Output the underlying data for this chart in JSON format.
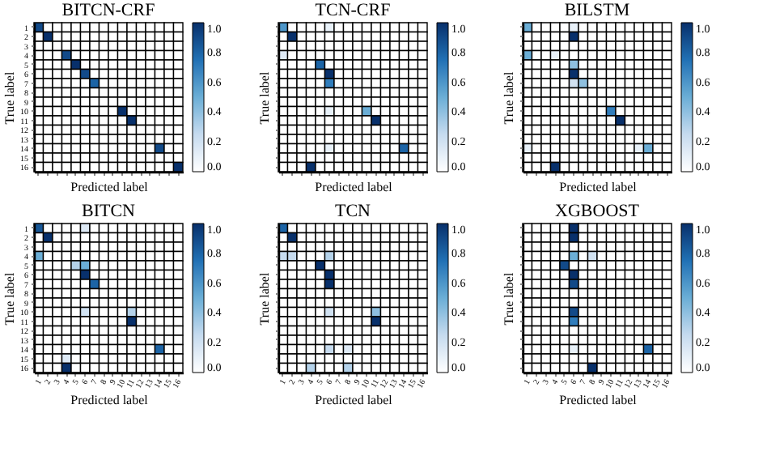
{
  "chart_data": [
    {
      "type": "heatmap",
      "title": "BITCN-CRF",
      "xlabel": "Predicted label",
      "ylabel": "True label",
      "tick_labels": "y",
      "categories": [
        "1",
        "2",
        "3",
        "4",
        "5",
        "6",
        "7",
        "8",
        "9",
        "10",
        "11",
        "12",
        "13",
        "14",
        "15",
        "16"
      ],
      "y_categories": [
        "1",
        "2",
        "3",
        "4",
        "5",
        "6",
        "7",
        "8",
        "9",
        "10",
        "11",
        "12",
        "13",
        "14",
        "15",
        "16"
      ],
      "clim": [
        0,
        1
      ],
      "cticks": [
        {
          "value": 0,
          "label": "0.0"
        },
        {
          "value": 0.2,
          "label": "0.2"
        },
        {
          "value": 0.4,
          "label": "0.4"
        },
        {
          "value": 0.6,
          "label": "0.6"
        },
        {
          "value": 0.8,
          "label": "0.8"
        },
        {
          "value": 1,
          "label": "1.0"
        }
      ],
      "cells": [
        [
          0.9,
          0,
          0,
          0,
          0,
          0,
          0,
          0,
          0,
          0,
          0,
          0,
          0,
          0,
          0,
          0
        ],
        [
          0,
          1,
          0,
          0,
          0,
          0,
          0,
          0,
          0,
          0,
          0,
          0,
          0,
          0,
          0,
          0
        ],
        [
          0,
          0,
          0,
          0,
          0,
          0,
          0,
          0,
          0,
          0,
          0,
          0,
          0,
          0,
          0,
          0
        ],
        [
          0,
          0,
          0,
          0.9,
          0,
          0,
          0,
          0,
          0,
          0,
          0,
          0,
          0,
          0,
          0,
          0
        ],
        [
          0,
          0,
          0,
          0,
          1,
          0,
          0,
          0,
          0,
          0,
          0,
          0,
          0,
          0,
          0,
          0
        ],
        [
          0,
          0,
          0,
          0,
          0,
          0.9,
          0,
          0,
          0,
          0,
          0,
          0,
          0,
          0,
          0,
          0
        ],
        [
          0,
          0,
          0,
          0,
          0,
          0,
          0.8,
          0,
          0,
          0,
          0,
          0,
          0,
          0,
          0,
          0
        ],
        [
          0,
          0,
          0,
          0,
          0,
          0,
          0,
          0,
          0,
          0,
          0,
          0,
          0,
          0,
          0,
          0
        ],
        [
          0,
          0,
          0,
          0,
          0,
          0,
          0,
          0,
          0,
          0,
          0,
          0,
          0,
          0,
          0,
          0
        ],
        [
          0,
          0,
          0,
          0,
          0,
          0,
          0,
          0,
          0,
          1,
          0,
          0,
          0,
          0,
          0,
          0
        ],
        [
          0,
          0,
          0,
          0,
          0,
          0,
          0,
          0,
          0,
          0,
          1,
          0,
          0,
          0,
          0,
          0
        ],
        [
          0,
          0,
          0,
          0,
          0,
          0,
          0,
          0,
          0,
          0,
          0,
          0,
          0,
          0,
          0,
          0
        ],
        [
          0,
          0,
          0,
          0,
          0,
          0,
          0,
          0,
          0,
          0,
          0,
          0,
          0,
          0,
          0,
          0
        ],
        [
          0,
          0,
          0,
          0,
          0,
          0,
          0,
          0,
          0,
          0,
          0,
          0,
          0,
          0.9,
          0,
          0
        ],
        [
          0,
          0,
          0,
          0,
          0,
          0,
          0,
          0,
          0,
          0,
          0,
          0,
          0,
          0,
          0,
          0
        ],
        [
          0,
          0,
          0,
          0,
          0,
          0,
          0,
          0,
          0,
          0,
          0,
          0,
          0,
          0,
          0,
          1
        ]
      ]
    },
    {
      "type": "heatmap",
      "title": "TCN-CRF",
      "xlabel": "Predicted label",
      "ylabel": "True label",
      "tick_labels": false,
      "categories": [
        "1",
        "2",
        "3",
        "4",
        "5",
        "6",
        "7",
        "8",
        "9",
        "10",
        "11",
        "12",
        "13",
        "14",
        "15",
        "16"
      ],
      "y_categories": [
        "1",
        "2",
        "3",
        "4",
        "5",
        "6",
        "7",
        "8",
        "9",
        "10",
        "11",
        "12",
        "13",
        "14",
        "15",
        "16"
      ],
      "clim": [
        0,
        1
      ],
      "cticks": [
        {
          "value": 0,
          "label": "0.0"
        },
        {
          "value": 0.2,
          "label": "0.2"
        },
        {
          "value": 0.4,
          "label": "0.4"
        },
        {
          "value": 0.6,
          "label": "0.6"
        },
        {
          "value": 0.8,
          "label": "0.8"
        },
        {
          "value": 1,
          "label": "1.0"
        }
      ],
      "cells": [
        [
          0.6,
          0,
          0,
          0,
          0,
          0.1,
          0,
          0,
          0,
          0,
          0,
          0,
          0,
          0,
          0,
          0
        ],
        [
          0,
          1,
          0,
          0,
          0,
          0,
          0,
          0,
          0,
          0,
          0,
          0,
          0,
          0,
          0,
          0
        ],
        [
          0,
          0,
          0,
          0,
          0,
          0,
          0,
          0,
          0,
          0,
          0,
          0,
          0,
          0,
          0,
          0
        ],
        [
          0.15,
          0,
          0,
          0,
          0,
          0,
          0,
          0,
          0,
          0,
          0,
          0,
          0,
          0,
          0,
          0
        ],
        [
          0,
          0,
          0,
          0,
          0.8,
          0,
          0,
          0,
          0,
          0,
          0,
          0,
          0,
          0,
          0,
          0
        ],
        [
          0,
          0,
          0,
          0,
          0,
          1,
          0,
          0,
          0,
          0,
          0,
          0,
          0,
          0,
          0,
          0
        ],
        [
          0,
          0,
          0,
          0,
          0,
          0.7,
          0,
          0,
          0,
          0,
          0,
          0,
          0,
          0,
          0,
          0
        ],
        [
          0,
          0,
          0,
          0,
          0,
          0,
          0,
          0,
          0,
          0,
          0,
          0,
          0,
          0,
          0,
          0
        ],
        [
          0,
          0,
          0,
          0,
          0,
          0,
          0,
          0,
          0,
          0,
          0,
          0,
          0,
          0,
          0,
          0
        ],
        [
          0,
          0,
          0,
          0,
          0,
          0.1,
          0,
          0,
          0,
          0.5,
          0,
          0,
          0,
          0,
          0,
          0
        ],
        [
          0,
          0,
          0,
          0,
          0,
          0,
          0,
          0,
          0,
          0,
          1,
          0,
          0,
          0,
          0,
          0
        ],
        [
          0,
          0,
          0,
          0,
          0,
          0,
          0,
          0,
          0,
          0,
          0,
          0,
          0,
          0,
          0,
          0
        ],
        [
          0,
          0,
          0,
          0,
          0,
          0,
          0,
          0,
          0,
          0,
          0,
          0,
          0,
          0,
          0,
          0
        ],
        [
          0,
          0,
          0,
          0,
          0,
          0.1,
          0,
          0,
          0,
          0,
          0,
          0,
          0,
          0.8,
          0,
          0
        ],
        [
          0,
          0,
          0,
          0,
          0,
          0,
          0,
          0,
          0,
          0,
          0,
          0,
          0,
          0,
          0,
          0
        ],
        [
          0,
          0,
          0,
          1,
          0,
          0,
          0,
          0,
          0,
          0,
          0,
          0,
          0,
          0,
          0,
          0
        ]
      ]
    },
    {
      "type": "heatmap",
      "title": "BILSTM",
      "xlabel": "Predicted label",
      "ylabel": "True label",
      "tick_labels": false,
      "categories": [
        "1",
        "2",
        "3",
        "4",
        "5",
        "6",
        "7",
        "8",
        "9",
        "10",
        "11",
        "12",
        "13",
        "14",
        "15",
        "16"
      ],
      "y_categories": [
        "1",
        "2",
        "3",
        "4",
        "5",
        "6",
        "7",
        "8",
        "9",
        "10",
        "11",
        "12",
        "13",
        "14",
        "15",
        "16"
      ],
      "clim": [
        0,
        1
      ],
      "cticks": [
        {
          "value": 0,
          "label": "0.0"
        },
        {
          "value": 0.2,
          "label": "0.2"
        },
        {
          "value": 0.4,
          "label": "0.4"
        },
        {
          "value": 0.6,
          "label": "0.6"
        },
        {
          "value": 0.8,
          "label": "0.8"
        },
        {
          "value": 1,
          "label": "1.0"
        }
      ],
      "cells": [
        [
          0.5,
          0,
          0,
          0,
          0,
          0.1,
          0,
          0,
          0,
          0,
          0,
          0,
          0,
          0,
          0,
          0
        ],
        [
          0,
          0,
          0,
          0,
          0,
          1,
          0,
          0,
          0,
          0,
          0,
          0,
          0,
          0,
          0,
          0
        ],
        [
          0,
          0,
          0,
          0,
          0,
          0,
          0,
          0,
          0,
          0,
          0,
          0,
          0,
          0,
          0,
          0
        ],
        [
          0.5,
          0,
          0,
          0.1,
          0,
          0,
          0,
          0,
          0,
          0,
          0,
          0,
          0,
          0,
          0,
          0
        ],
        [
          0,
          0,
          0,
          0,
          0,
          0.4,
          0,
          0,
          0,
          0,
          0,
          0,
          0,
          0,
          0,
          0
        ],
        [
          0,
          0,
          0,
          0,
          0,
          1,
          0,
          0,
          0,
          0,
          0,
          0,
          0,
          0,
          0,
          0
        ],
        [
          0,
          0,
          0,
          0,
          0,
          0.2,
          0.4,
          0,
          0,
          0,
          0,
          0,
          0,
          0,
          0,
          0
        ],
        [
          0,
          0,
          0,
          0,
          0,
          0,
          0,
          0,
          0,
          0,
          0,
          0,
          0,
          0,
          0,
          0
        ],
        [
          0,
          0,
          0,
          0,
          0,
          0,
          0,
          0,
          0,
          0,
          0,
          0,
          0,
          0,
          0,
          0
        ],
        [
          0,
          0,
          0,
          0,
          0,
          0,
          0,
          0,
          0,
          0.7,
          0,
          0,
          0,
          0,
          0,
          0
        ],
        [
          0,
          0,
          0,
          0,
          0,
          0,
          0,
          0,
          0,
          0,
          1,
          0,
          0,
          0,
          0,
          0
        ],
        [
          0,
          0,
          0,
          0,
          0,
          0,
          0,
          0,
          0,
          0,
          0,
          0,
          0,
          0,
          0,
          0
        ],
        [
          0,
          0,
          0,
          0,
          0,
          0,
          0,
          0,
          0,
          0,
          0,
          0,
          0,
          0,
          0,
          0
        ],
        [
          0.1,
          0,
          0,
          0,
          0,
          0,
          0,
          0,
          0,
          0,
          0,
          0,
          0.1,
          0.5,
          0,
          0
        ],
        [
          0,
          0,
          0,
          0,
          0,
          0,
          0,
          0,
          0,
          0,
          0,
          0,
          0,
          0,
          0,
          0
        ],
        [
          0,
          0,
          0,
          1,
          0,
          0,
          0,
          0,
          0,
          0,
          0,
          0,
          0,
          0,
          0,
          0
        ]
      ]
    },
    {
      "type": "heatmap",
      "title": "BITCN",
      "xlabel": "Predicted label",
      "ylabel": "True label",
      "categories": [
        "1",
        "2",
        "3",
        "4",
        "5",
        "6",
        "7",
        "8",
        "9",
        "10",
        "11",
        "12",
        "13",
        "14",
        "15",
        "16"
      ],
      "y_categories": [
        "1",
        "2",
        "3",
        "4",
        "5",
        "6",
        "7",
        "8",
        "9",
        "10",
        "11",
        "12",
        "13",
        "14",
        "15",
        "16"
      ],
      "clim": [
        0,
        1
      ],
      "cticks": [
        {
          "value": 0,
          "label": "0.0"
        },
        {
          "value": 0.2,
          "label": "0.2"
        },
        {
          "value": 0.4,
          "label": "0.4"
        },
        {
          "value": 0.6,
          "label": "0.6"
        },
        {
          "value": 0.8,
          "label": "0.8"
        },
        {
          "value": 1,
          "label": "1.0"
        }
      ],
      "cells": [
        [
          0.85,
          0,
          0,
          0,
          0,
          0.15,
          0,
          0,
          0,
          0,
          0,
          0,
          0,
          0,
          0,
          0
        ],
        [
          0,
          1,
          0,
          0,
          0,
          0,
          0,
          0,
          0,
          0,
          0,
          0,
          0,
          0,
          0,
          0
        ],
        [
          0,
          0,
          0,
          0,
          0,
          0,
          0,
          0,
          0,
          0,
          0,
          0,
          0,
          0,
          0,
          0
        ],
        [
          0.5,
          0,
          0,
          0,
          0,
          0,
          0,
          0,
          0,
          0,
          0,
          0,
          0,
          0,
          0,
          0
        ],
        [
          0,
          0,
          0,
          0,
          0.3,
          0.5,
          0,
          0,
          0,
          0,
          0,
          0,
          0,
          0,
          0,
          0
        ],
        [
          0,
          0,
          0,
          0,
          0,
          1,
          0,
          0,
          0,
          0,
          0,
          0,
          0,
          0,
          0,
          0
        ],
        [
          0,
          0,
          0,
          0,
          0,
          0,
          0.8,
          0,
          0,
          0,
          0,
          0,
          0,
          0,
          0,
          0
        ],
        [
          0,
          0,
          0,
          0,
          0,
          0,
          0,
          0,
          0,
          0,
          0,
          0,
          0,
          0,
          0,
          0
        ],
        [
          0,
          0,
          0,
          0,
          0,
          0,
          0,
          0,
          0,
          0,
          0,
          0,
          0,
          0,
          0,
          0
        ],
        [
          0,
          0,
          0,
          0,
          0,
          0.2,
          0,
          0,
          0,
          0,
          0.3,
          0,
          0,
          0,
          0,
          0
        ],
        [
          0,
          0,
          0,
          0,
          0,
          0,
          0,
          0,
          0,
          0,
          1,
          0,
          0,
          0,
          0,
          0
        ],
        [
          0,
          0,
          0,
          0,
          0,
          0,
          0,
          0,
          0,
          0,
          0,
          0,
          0,
          0,
          0,
          0
        ],
        [
          0,
          0,
          0,
          0,
          0,
          0,
          0,
          0,
          0,
          0,
          0,
          0,
          0,
          0,
          0,
          0
        ],
        [
          0,
          0,
          0,
          0,
          0,
          0,
          0,
          0,
          0,
          0,
          0,
          0,
          0,
          0.8,
          0,
          0
        ],
        [
          0,
          0,
          0,
          0.15,
          0,
          0,
          0,
          0,
          0,
          0,
          0,
          0,
          0,
          0,
          0,
          0
        ],
        [
          0,
          0,
          0,
          1,
          0,
          0,
          0,
          0,
          0,
          0,
          0,
          0,
          0,
          0,
          0,
          0
        ]
      ]
    },
    {
      "type": "heatmap",
      "title": "TCN",
      "xlabel": "Predicted label",
      "ylabel": "True label",
      "tick_labels": "x",
      "categories": [
        "1",
        "2",
        "3",
        "4",
        "5",
        "6",
        "7",
        "8",
        "9",
        "10",
        "11",
        "12",
        "13",
        "14",
        "15",
        "16"
      ],
      "y_categories": [
        "1",
        "2",
        "3",
        "4",
        "5",
        "6",
        "7",
        "8",
        "9",
        "10",
        "11",
        "12",
        "13",
        "14",
        "15",
        "16"
      ],
      "clim": [
        0,
        1
      ],
      "cticks": [
        {
          "value": 0,
          "label": "0.0"
        },
        {
          "value": 0.2,
          "label": "0.2"
        },
        {
          "value": 0.4,
          "label": "0.4"
        },
        {
          "value": 0.6,
          "label": "0.6"
        },
        {
          "value": 0.8,
          "label": "0.8"
        },
        {
          "value": 1,
          "label": "1.0"
        }
      ],
      "cells": [
        [
          0.8,
          0,
          0,
          0,
          0,
          0,
          0,
          0,
          0,
          0,
          0,
          0,
          0,
          0,
          0,
          0
        ],
        [
          0,
          1,
          0,
          0,
          0,
          0,
          0,
          0,
          0,
          0,
          0,
          0,
          0,
          0,
          0,
          0
        ],
        [
          0,
          0,
          0,
          0,
          0,
          0,
          0,
          0,
          0,
          0,
          0,
          0,
          0,
          0,
          0,
          0
        ],
        [
          0.25,
          0.25,
          0,
          0,
          0,
          0.3,
          0,
          0,
          0,
          0,
          0,
          0,
          0,
          0,
          0,
          0
        ],
        [
          0,
          0,
          0,
          0,
          1,
          0,
          0,
          0,
          0,
          0,
          0,
          0,
          0,
          0,
          0,
          0
        ],
        [
          0,
          0,
          0,
          0,
          0,
          1,
          0,
          0,
          0,
          0,
          0,
          0,
          0,
          0,
          0,
          0
        ],
        [
          0,
          0,
          0,
          0,
          0,
          1,
          0,
          0,
          0,
          0,
          0,
          0,
          0,
          0,
          0,
          0
        ],
        [
          0,
          0,
          0,
          0,
          0,
          0,
          0,
          0,
          0,
          0,
          0,
          0,
          0,
          0,
          0,
          0
        ],
        [
          0,
          0,
          0,
          0,
          0,
          0,
          0,
          0,
          0,
          0,
          0,
          0,
          0,
          0,
          0,
          0
        ],
        [
          0,
          0,
          0,
          0,
          0,
          0.2,
          0,
          0,
          0,
          0,
          0.4,
          0,
          0,
          0,
          0,
          0
        ],
        [
          0,
          0,
          0,
          0,
          0,
          0,
          0,
          0,
          0,
          0,
          1,
          0,
          0,
          0,
          0,
          0
        ],
        [
          0,
          0,
          0,
          0,
          0,
          0,
          0,
          0,
          0,
          0,
          0,
          0,
          0,
          0,
          0,
          0
        ],
        [
          0,
          0,
          0,
          0,
          0,
          0,
          0,
          0,
          0,
          0,
          0,
          0,
          0,
          0,
          0,
          0
        ],
        [
          0,
          0,
          0,
          0,
          0,
          0.25,
          0,
          0.15,
          0,
          0,
          0,
          0,
          0,
          0,
          0,
          0
        ],
        [
          0,
          0,
          0,
          0,
          0,
          0,
          0,
          0,
          0,
          0,
          0,
          0,
          0,
          0,
          0,
          0
        ],
        [
          0,
          0,
          0,
          0.3,
          0,
          0,
          0,
          0.3,
          0,
          0,
          0,
          0,
          0,
          0,
          0,
          0
        ]
      ]
    },
    {
      "type": "heatmap",
      "title": "XGBOOST",
      "xlabel": "Predicted label",
      "ylabel": "True label",
      "tick_labels": "x",
      "categories": [
        "1",
        "2",
        "3",
        "4",
        "5",
        "6",
        "7",
        "8",
        "9",
        "10",
        "11",
        "12",
        "13",
        "14",
        "15",
        "16"
      ],
      "y_categories": [
        "1",
        "2",
        "3",
        "4",
        "5",
        "6",
        "7",
        "8",
        "9",
        "10",
        "11",
        "12",
        "13",
        "14",
        "15",
        "16"
      ],
      "clim": [
        0,
        1
      ],
      "cticks": [
        {
          "value": 0,
          "label": "0.0"
        },
        {
          "value": 0.2,
          "label": "0.2"
        },
        {
          "value": 0.4,
          "label": "0.4"
        },
        {
          "value": 0.6,
          "label": "0.6"
        },
        {
          "value": 0.8,
          "label": "0.8"
        },
        {
          "value": 1,
          "label": "1.0"
        }
      ],
      "cells": [
        [
          0,
          0,
          0,
          0,
          0,
          1,
          0,
          0,
          0,
          0,
          0,
          0,
          0,
          0,
          0,
          0
        ],
        [
          0,
          0,
          0,
          0,
          0,
          1,
          0,
          0,
          0,
          0,
          0,
          0,
          0,
          0,
          0,
          0
        ],
        [
          0,
          0,
          0,
          0,
          0,
          0,
          0,
          0,
          0,
          0,
          0,
          0,
          0,
          0,
          0,
          0
        ],
        [
          0,
          0,
          0,
          0,
          0,
          0.5,
          0,
          0.2,
          0,
          0,
          0,
          0,
          0,
          0,
          0,
          0
        ],
        [
          0,
          0,
          0,
          0,
          0.9,
          0,
          0,
          0,
          0,
          0,
          0,
          0,
          0,
          0,
          0,
          0
        ],
        [
          0,
          0,
          0,
          0,
          0,
          1,
          0,
          0,
          0,
          0,
          0,
          0,
          0,
          0,
          0,
          0
        ],
        [
          0,
          0,
          0,
          0,
          0,
          0.9,
          0,
          0,
          0,
          0,
          0,
          0,
          0,
          0,
          0,
          0
        ],
        [
          0,
          0,
          0,
          0,
          0,
          0,
          0,
          0,
          0,
          0,
          0,
          0,
          0,
          0,
          0,
          0
        ],
        [
          0,
          0,
          0,
          0,
          0,
          0,
          0,
          0,
          0,
          0,
          0,
          0,
          0,
          0,
          0,
          0
        ],
        [
          0,
          0,
          0,
          0,
          0,
          0.9,
          0,
          0,
          0,
          0,
          0,
          0,
          0,
          0,
          0,
          0
        ],
        [
          0,
          0,
          0,
          0,
          0,
          0.7,
          0,
          0,
          0,
          0,
          0,
          0,
          0,
          0,
          0,
          0
        ],
        [
          0,
          0,
          0,
          0,
          0,
          0,
          0,
          0,
          0,
          0,
          0,
          0,
          0,
          0,
          0,
          0
        ],
        [
          0,
          0,
          0,
          0,
          0,
          0,
          0,
          0,
          0,
          0,
          0,
          0,
          0,
          0,
          0,
          0
        ],
        [
          0,
          0,
          0,
          0,
          0,
          0.1,
          0,
          0,
          0,
          0,
          0,
          0,
          0,
          0.8,
          0,
          0
        ],
        [
          0,
          0,
          0,
          0,
          0,
          0,
          0,
          0,
          0,
          0,
          0,
          0,
          0,
          0,
          0,
          0
        ],
        [
          0,
          0,
          0,
          0,
          0,
          0,
          0,
          1,
          0,
          0,
          0,
          0,
          0,
          0,
          0,
          0
        ]
      ]
    }
  ]
}
